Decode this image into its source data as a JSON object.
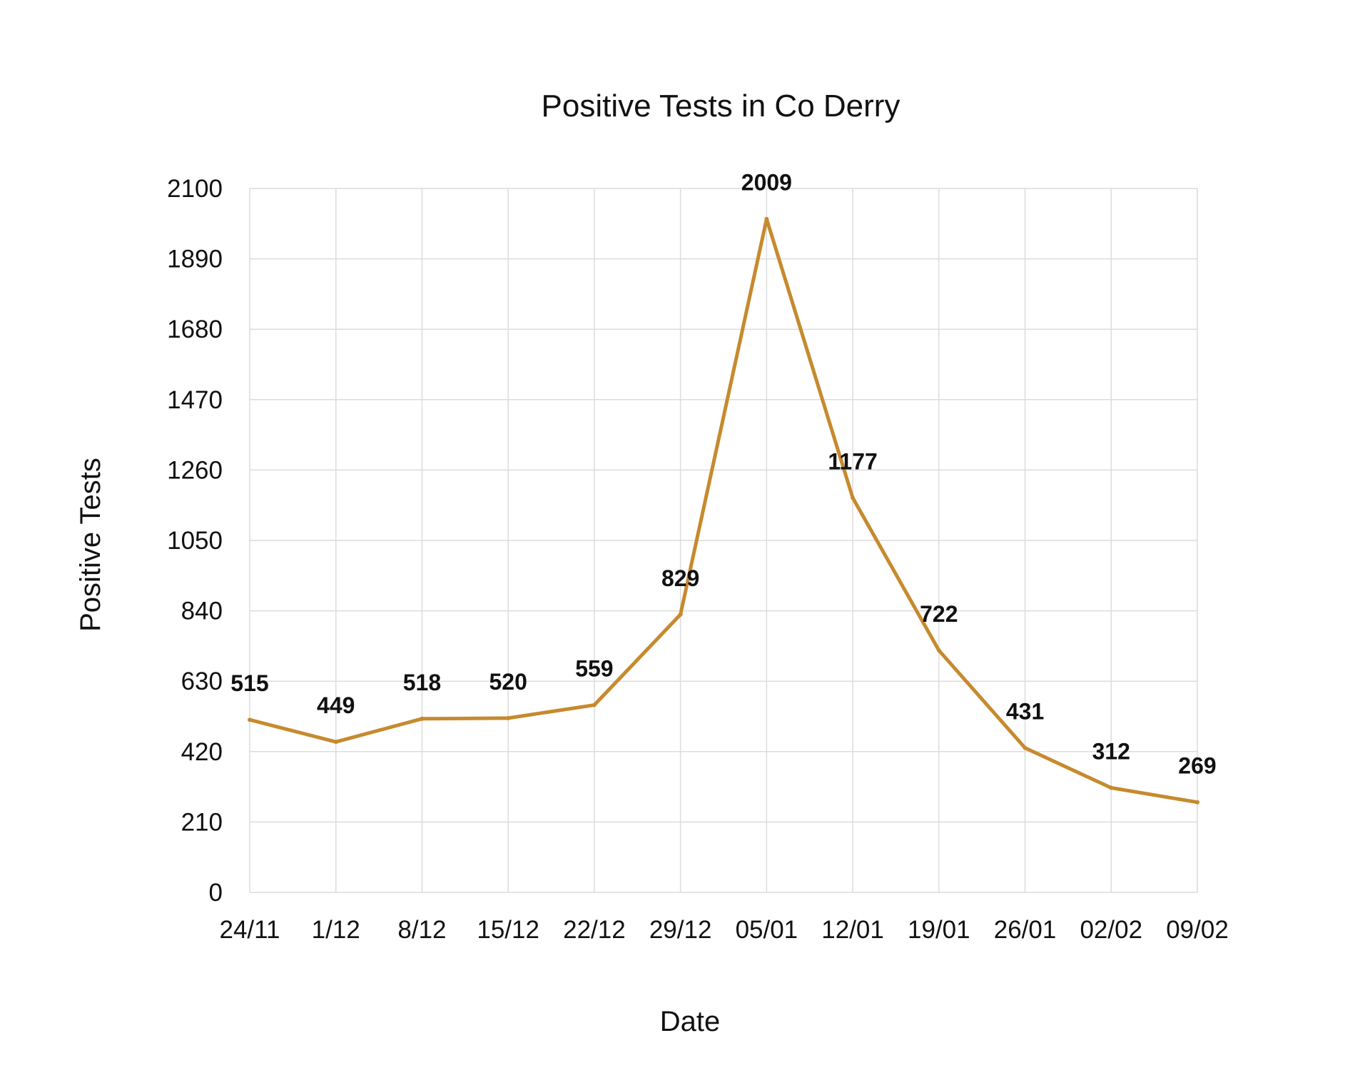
{
  "chart_data": {
    "type": "line",
    "title": "Positive Tests in Co Derry",
    "xlabel": "Date",
    "ylabel": "Positive Tests",
    "categories": [
      "24/11",
      "1/12",
      "8/12",
      "15/12",
      "22/12",
      "29/12",
      "05/01",
      "12/01",
      "19/01",
      "26/01",
      "02/02",
      "09/02"
    ],
    "series": [
      {
        "name": "",
        "values": [
          515,
          449,
          518,
          520,
          559,
          829,
          2009,
          1177,
          722,
          431,
          312,
          269
        ],
        "color": "#c68a2e"
      }
    ],
    "ylim": [
      0,
      2100
    ],
    "yticks": [
      0,
      210,
      420,
      630,
      840,
      1050,
      1260,
      1470,
      1680,
      1890,
      2100
    ],
    "grid": true,
    "data_labels": true
  }
}
